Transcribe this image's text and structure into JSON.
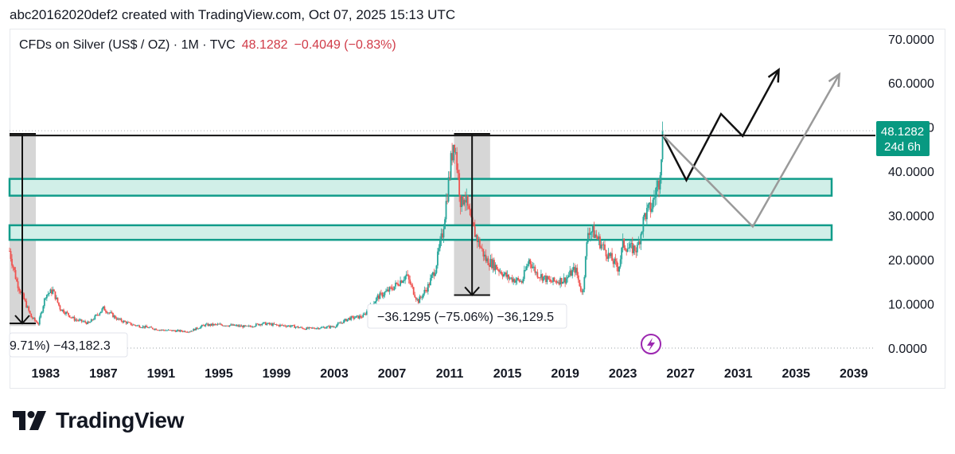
{
  "caption": "abc20162020def2 created with TradingView.com, Oct 07, 2025 15:13 UTC",
  "legend": {
    "symbol": "CFDs on Silver (US$ / OZ) · 1M · TVC",
    "price": "48.1282",
    "change": "−0.4049 (−0.83%)"
  },
  "price_badge": {
    "price": "48.1282",
    "countdown": "24d 6h"
  },
  "brand": "TradingView",
  "icons": {
    "alert": "lightning-icon",
    "logo": "tradingview-logo-icon"
  },
  "colors": {
    "up": "#26a69a",
    "down": "#ef5350",
    "zone_fill": "#d1efe8",
    "zone_border": "#119c8a",
    "badge": "#089981",
    "neg": "#d03b48"
  },
  "chart_data": {
    "type": "candlestick",
    "xaxis": {
      "ticks": [
        "1983",
        "1987",
        "1991",
        "1995",
        "1999",
        "2003",
        "2007",
        "2011",
        "2015",
        "2019",
        "2023",
        "2027",
        "2031",
        "2035",
        "2039"
      ],
      "range": [
        1980.5,
        2040.5
      ]
    },
    "yaxis": {
      "ticks": [
        "0.0000",
        "10.0000",
        "20.0000",
        "30.0000",
        "40.0000",
        "50.0000",
        "60.0000",
        "70.0000"
      ],
      "range": [
        -2.7,
        72.3
      ],
      "position": "right"
    },
    "series_close": [
      [
        1980.5,
        22
      ],
      [
        1981,
        15
      ],
      [
        1982,
        7
      ],
      [
        1982.5,
        5.5
      ],
      [
        1983,
        12
      ],
      [
        1983.5,
        13
      ],
      [
        1984,
        9
      ],
      [
        1985,
        6.5
      ],
      [
        1986,
        5.6
      ],
      [
        1987,
        9
      ],
      [
        1988,
        6.5
      ],
      [
        1989,
        5.3
      ],
      [
        1990,
        4.7
      ],
      [
        1991,
        4.1
      ],
      [
        1992,
        3.9
      ],
      [
        1993,
        3.8
      ],
      [
        1994,
        5.2
      ],
      [
        1995,
        5.3
      ],
      [
        1996,
        5.1
      ],
      [
        1997,
        4.8
      ],
      [
        1998,
        5.6
      ],
      [
        1999,
        5.2
      ],
      [
        2000,
        5
      ],
      [
        2001,
        4.4
      ],
      [
        2002,
        4.6
      ],
      [
        2003,
        4.9
      ],
      [
        2004,
        6.7
      ],
      [
        2005,
        7.2
      ],
      [
        2006,
        11.5
      ],
      [
        2007,
        13.5
      ],
      [
        2008,
        16.5
      ],
      [
        2008.8,
        10.5
      ],
      [
        2009.5,
        14
      ],
      [
        2010,
        18
      ],
      [
        2010.5,
        26
      ],
      [
        2011.3,
        48
      ],
      [
        2011.8,
        32
      ],
      [
        2012,
        35
      ],
      [
        2012.5,
        28
      ],
      [
        2013,
        24
      ],
      [
        2013.5,
        20
      ],
      [
        2014,
        19
      ],
      [
        2015,
        16
      ],
      [
        2016,
        15
      ],
      [
        2016.5,
        20
      ],
      [
        2017,
        17
      ],
      [
        2018,
        15
      ],
      [
        2019,
        15.5
      ],
      [
        2019.7,
        18
      ],
      [
        2020.2,
        12
      ],
      [
        2020.6,
        27
      ],
      [
        2021,
        26
      ],
      [
        2022,
        21
      ],
      [
        2022.7,
        18
      ],
      [
        2023,
        23.5
      ],
      [
        2023.5,
        22.5
      ],
      [
        2024,
        22.5
      ],
      [
        2024.5,
        30
      ],
      [
        2025,
        32
      ],
      [
        2025.5,
        38
      ],
      [
        2025.75,
        48.1
      ]
    ],
    "horizontal_lines": [
      48.1282
    ],
    "zones": [
      {
        "from": 34.5,
        "to": 38.3
      },
      {
        "from": 24.5,
        "to": 27.8
      }
    ],
    "measurements": [
      {
        "label": "−36.1295 (−75.06%) −36,129.5",
        "from": [
          2011.3,
          48.5
        ],
        "to": [
          2013.8,
          12
        ]
      },
      {
        "label": "9.71%) −43,182.3",
        "from": [
          1981,
          48.5
        ],
        "to": [
          1981,
          5
        ]
      }
    ],
    "projections": [
      {
        "color": "black",
        "points": [
          [
            2025.8,
            48.1
          ],
          [
            2027.4,
            38
          ],
          [
            2029.8,
            53
          ],
          [
            2031.3,
            48
          ],
          [
            2033.8,
            63
          ]
        ]
      },
      {
        "color": "gray",
        "points": [
          [
            2025.8,
            48.1
          ],
          [
            2032,
            27.5
          ],
          [
            2038,
            62
          ]
        ]
      }
    ]
  }
}
